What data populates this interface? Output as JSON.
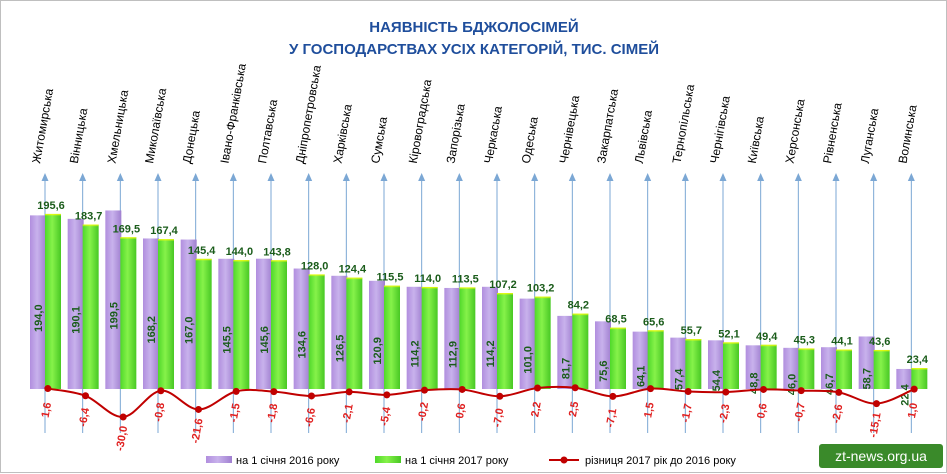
{
  "chart_data": {
    "type": "bar",
    "title": "НАЯВНІСТЬ БДЖОЛОСІМЕЙ",
    "subtitle": "У ГОСПОДАРСТВАХ УСІХ КАТЕГОРІЙ, ТИС. СІМЕЙ",
    "categories": [
      "Житомирська",
      "Вінницька",
      "Хмельницька",
      "Миколаївська",
      "Донецька",
      "Івано-Франківська",
      "Полтавська",
      "Дніпропетровська",
      "Харківська",
      "Сумська",
      "Кіровоградська",
      "Запорізька",
      "Черкаська",
      "Одеська",
      "Чернівецька",
      "Закарпатська",
      "Львівська",
      "Тернопільська",
      "Чернігівська",
      "Київська",
      "Херсонська",
      "Рівненська",
      "Луганська",
      "Волинська"
    ],
    "series": [
      {
        "name": "на 1 січня 2016 року",
        "color": "#b99bdc",
        "values": [
          194.0,
          190.1,
          199.5,
          168.2,
          167.0,
          145.5,
          145.6,
          134.6,
          126.5,
          120.9,
          114.2,
          112.9,
          114.2,
          101.0,
          81.7,
          75.6,
          64.1,
          57.4,
          54.4,
          48.8,
          46.0,
          46.7,
          58.7,
          22.4
        ],
        "labels": [
          "194,0",
          "190,1",
          "199,5",
          "168,2",
          "167,0",
          "145,5",
          "145,6",
          "134,6",
          "126,5",
          "120,9",
          "114,2",
          "112,9",
          "114,2",
          "101,0",
          "81,7",
          "75,6",
          "64,1",
          "57,4",
          "54,4",
          "48,8",
          "46,0",
          "46,7",
          "58,7",
          "22,4"
        ]
      },
      {
        "name": "на 1 січня 2017 року",
        "color": "#5ee62c",
        "values": [
          195.6,
          183.7,
          169.5,
          167.4,
          145.4,
          144.0,
          143.8,
          128.0,
          124.4,
          115.5,
          114.0,
          113.5,
          107.2,
          103.2,
          84.2,
          68.5,
          65.6,
          55.7,
          52.1,
          49.4,
          45.3,
          44.1,
          43.6,
          23.4
        ],
        "labels": [
          "195,6",
          "183,7",
          "169,5",
          "167,4",
          "145,4",
          "144,0",
          "143,8",
          "128,0",
          "124,4",
          "115,5",
          "114,0",
          "113,5",
          "107,2",
          "103,2",
          "84,2",
          "68,5",
          "65,6",
          "55,7",
          "52,1",
          "49,4",
          "45,3",
          "44,1",
          "43,6",
          "23,4"
        ]
      },
      {
        "name": "різниця 2017 рік до 2016 року",
        "color": "#c00000",
        "type": "line",
        "values": [
          1.6,
          -6.4,
          -30.0,
          -0.8,
          -21.6,
          -1.5,
          -1.8,
          -6.6,
          -2.1,
          -5.4,
          -0.2,
          0.6,
          -7.0,
          2.2,
          2.5,
          -7.1,
          1.5,
          -1.7,
          -2.3,
          0.6,
          -0.7,
          -2.6,
          -15.1,
          1.0
        ],
        "labels": [
          "1,6",
          "-6,4",
          "-30,0",
          "-0,8",
          "-21,6",
          "-1,5",
          "-1,8",
          "-6,6",
          "-2,1",
          "-5,4",
          "-0,2",
          "0,6",
          "-7,0",
          "2,2",
          "2,5",
          "-7,1",
          "1,5",
          "-1,7",
          "-2,3",
          "0,6",
          "-0,7",
          "-2,6",
          "-15,1",
          "1,0"
        ]
      }
    ],
    "legend_position": "bottom",
    "grid": false
  },
  "watermark": "zt-news.org.ua",
  "colors": {
    "title": "#1f4e9c",
    "value_label": "#1a5c1a",
    "difference": "#e02020",
    "axis_arrow": "#7ba7d4"
  }
}
